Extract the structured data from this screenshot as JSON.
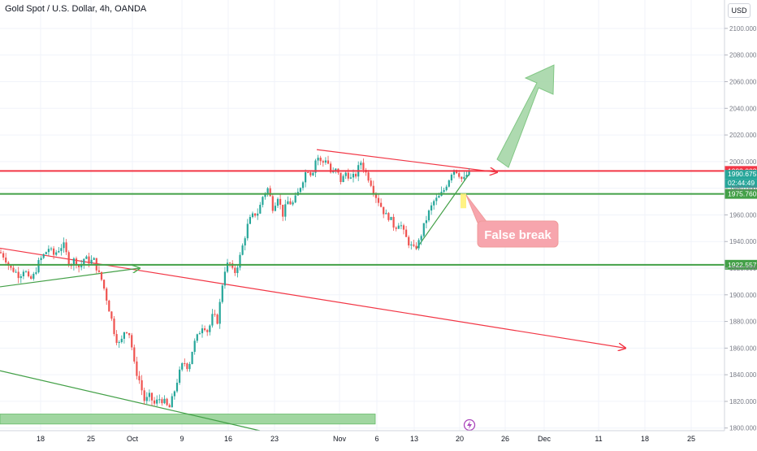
{
  "header": {
    "title": "Gold Spot / U.S. Dollar, 4h, OANDA",
    "currency": "USD"
  },
  "colors": {
    "up": "#26a69a",
    "down": "#ef5350",
    "resistance": "#f23645",
    "support": "#4caf50",
    "grid": "#f0f3fa",
    "zone": "#8fcf8f",
    "arrow": "#a5d6a7",
    "callout_bg": "#f7a5ad",
    "callout_text": "#ffffff"
  },
  "chart_data": {
    "type": "candlestick",
    "x_ticks": [
      "18",
      "25",
      "Oct",
      "9",
      "16",
      "23",
      "Nov",
      "6",
      "13",
      "20",
      "26",
      "Dec",
      "11",
      "18",
      "25"
    ],
    "y_ticks": [
      "2100.000",
      "2080.000",
      "2060.000",
      "2040.000",
      "2020.000",
      "2000.000",
      "1980.000",
      "1960.000",
      "1940.000",
      "1920.000",
      "1900.000",
      "1880.000",
      "1860.000",
      "1840.000",
      "1820.000",
      "1800.000"
    ],
    "ylim": [
      1798,
      2114
    ],
    "price_path": [
      [
        0,
        1932
      ],
      [
        6,
        1928
      ],
      [
        12,
        1920
      ],
      [
        18,
        1918
      ],
      [
        24,
        1914
      ],
      [
        30,
        1920
      ],
      [
        36,
        1910
      ],
      [
        42,
        1915
      ],
      [
        48,
        1925
      ],
      [
        54,
        1930
      ],
      [
        60,
        1935
      ],
      [
        66,
        1930
      ],
      [
        72,
        1934
      ],
      [
        78,
        1938
      ],
      [
        82,
        1930
      ],
      [
        86,
        1922
      ],
      [
        92,
        1927
      ],
      [
        98,
        1920
      ],
      [
        104,
        1928
      ],
      [
        110,
        1925
      ],
      [
        116,
        1926
      ],
      [
        120,
        1918
      ],
      [
        126,
        1910
      ],
      [
        132,
        1895
      ],
      [
        138,
        1880
      ],
      [
        142,
        1868
      ],
      [
        148,
        1862
      ],
      [
        154,
        1875
      ],
      [
        160,
        1870
      ],
      [
        166,
        1845
      ],
      [
        172,
        1835
      ],
      [
        178,
        1820
      ],
      [
        184,
        1824
      ],
      [
        190,
        1818
      ],
      [
        196,
        1822
      ],
      [
        202,
        1820
      ],
      [
        208,
        1814
      ],
      [
        214,
        1826
      ],
      [
        220,
        1840
      ],
      [
        226,
        1850
      ],
      [
        232,
        1845
      ],
      [
        238,
        1862
      ],
      [
        244,
        1870
      ],
      [
        250,
        1878
      ],
      [
        256,
        1872
      ],
      [
        262,
        1885
      ],
      [
        268,
        1880
      ],
      [
        272,
        1900
      ],
      [
        276,
        1918
      ],
      [
        282,
        1925
      ],
      [
        288,
        1915
      ],
      [
        294,
        1925
      ],
      [
        300,
        1940
      ],
      [
        306,
        1955
      ],
      [
        312,
        1960
      ],
      [
        318,
        1962
      ],
      [
        324,
        1975
      ],
      [
        330,
        1980
      ],
      [
        336,
        1965
      ],
      [
        342,
        1974
      ],
      [
        348,
        1960
      ],
      [
        354,
        1970
      ],
      [
        360,
        1968
      ],
      [
        366,
        1975
      ],
      [
        372,
        1985
      ],
      [
        378,
        1995
      ],
      [
        384,
        1990
      ],
      [
        390,
        2005
      ],
      [
        396,
        1998
      ],
      [
        402,
        2003
      ],
      [
        408,
        1990
      ],
      [
        414,
        1994
      ],
      [
        420,
        1985
      ],
      [
        426,
        1992
      ],
      [
        432,
        1987
      ],
      [
        438,
        1990
      ],
      [
        444,
        2000
      ],
      [
        450,
        1992
      ],
      [
        456,
        1985
      ],
      [
        462,
        1975
      ],
      [
        468,
        1968
      ],
      [
        474,
        1960
      ],
      [
        480,
        1958
      ],
      [
        486,
        1950
      ],
      [
        492,
        1955
      ],
      [
        498,
        1945
      ],
      [
        504,
        1938
      ],
      [
        510,
        1934
      ],
      [
        516,
        1940
      ],
      [
        522,
        1952
      ],
      [
        528,
        1962
      ],
      [
        534,
        1970
      ],
      [
        540,
        1973
      ],
      [
        546,
        1978
      ],
      [
        552,
        1986
      ],
      [
        558,
        1995
      ],
      [
        564,
        1992
      ],
      [
        570,
        1985
      ],
      [
        574,
        1990
      ],
      [
        578,
        1991
      ]
    ],
    "horizontal_levels": [
      {
        "label": "1993.003",
        "value": 1993,
        "kind": "resistance"
      },
      {
        "label": "1975.760",
        "value": 1975.76,
        "kind": "support"
      },
      {
        "label": "1922.557",
        "value": 1922.557,
        "kind": "support"
      }
    ],
    "price_labels": [
      {
        "text": "1990.675",
        "value": 1990.675
      },
      {
        "text": "02:44:49",
        "value": 1985.5
      }
    ],
    "annotation": "False break"
  }
}
